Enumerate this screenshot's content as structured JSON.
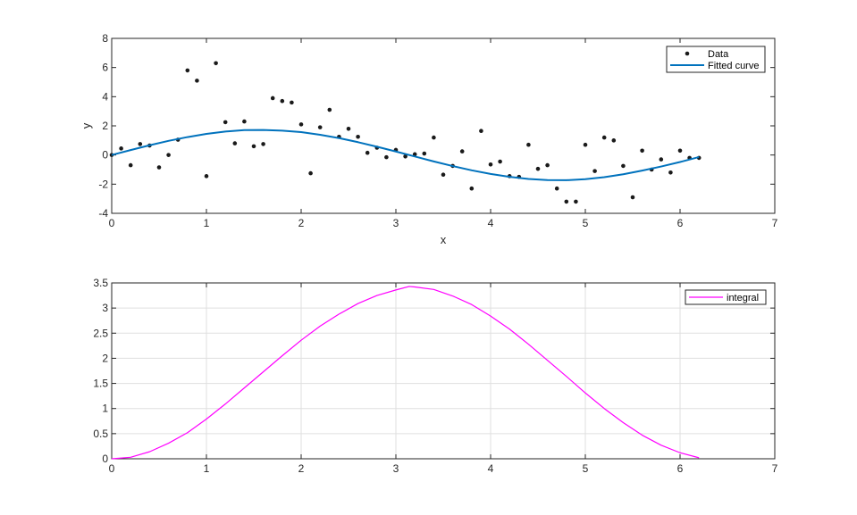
{
  "chart_data": [
    {
      "type": "scatter",
      "xlabel": "x",
      "ylabel": "y",
      "xlim": [
        0,
        7
      ],
      "ylim": [
        -4,
        8
      ],
      "xticks": [
        "0",
        "1",
        "2",
        "3",
        "4",
        "5",
        "6",
        "7"
      ],
      "yticks": [
        "-4",
        "-2",
        "0",
        "2",
        "4",
        "6",
        "8"
      ],
      "grid": false,
      "legend_position": "top-right",
      "series": [
        {
          "name": "Data",
          "style": "markers",
          "color": "#1a1a1a",
          "x": [
            0.0,
            0.1,
            0.2,
            0.3,
            0.4,
            0.5,
            0.6,
            0.7,
            0.8,
            0.9,
            1.0,
            1.1,
            1.2,
            1.3,
            1.4,
            1.5,
            1.6,
            1.7,
            1.8,
            1.9,
            2.0,
            2.1,
            2.2,
            2.3,
            2.4,
            2.5,
            2.6,
            2.7,
            2.8,
            2.9,
            3.0,
            3.1,
            3.2,
            3.3,
            3.4,
            3.5,
            3.6,
            3.7,
            3.8,
            3.9,
            4.0,
            4.1,
            4.2,
            4.3,
            4.4,
            4.5,
            4.6,
            4.7,
            4.8,
            4.9,
            5.0,
            5.1,
            5.2,
            5.3,
            5.4,
            5.5,
            5.6,
            5.7,
            5.8,
            5.9,
            6.0,
            6.1,
            6.2
          ],
          "y": [
            0.0,
            0.45,
            -0.7,
            0.75,
            0.65,
            -0.85,
            0.0,
            1.05,
            5.8,
            5.1,
            -1.45,
            6.3,
            2.25,
            0.8,
            2.3,
            0.6,
            0.75,
            3.9,
            3.7,
            3.6,
            2.1,
            -1.25,
            1.9,
            3.1,
            1.25,
            1.8,
            1.25,
            0.15,
            0.5,
            -0.15,
            0.35,
            -0.1,
            0.05,
            0.1,
            1.2,
            -1.35,
            -0.75,
            0.25,
            -2.3,
            1.65,
            -0.65,
            -0.45,
            -1.45,
            -1.5,
            0.7,
            -0.95,
            -0.7,
            -2.3,
            -3.2,
            -3.2,
            0.7,
            -1.1,
            1.2,
            1.0,
            -0.75,
            -2.9,
            0.3,
            -1.0,
            -0.3,
            -1.2,
            0.3,
            -0.2,
            -0.2
          ]
        },
        {
          "name": "Fitted curve",
          "style": "line",
          "color": "#0072bd",
          "x": [
            0.0,
            0.2,
            0.4,
            0.6,
            0.8,
            1.0,
            1.2,
            1.4,
            1.6,
            1.8,
            2.0,
            2.2,
            2.4,
            2.6,
            2.8,
            3.0,
            3.2,
            3.4,
            3.6,
            3.8,
            4.0,
            4.2,
            4.4,
            4.6,
            4.8,
            5.0,
            5.2,
            5.4,
            5.6,
            5.8,
            6.0,
            6.2
          ],
          "y": [
            0.0,
            0.34,
            0.67,
            0.97,
            1.23,
            1.45,
            1.61,
            1.71,
            1.72,
            1.67,
            1.57,
            1.39,
            1.16,
            0.88,
            0.57,
            0.24,
            -0.1,
            -0.44,
            -0.76,
            -1.05,
            -1.3,
            -1.5,
            -1.64,
            -1.72,
            -1.73,
            -1.66,
            -1.52,
            -1.32,
            -1.07,
            -0.79,
            -0.48,
            -0.14
          ]
        }
      ]
    },
    {
      "type": "line",
      "xlabel": "",
      "ylabel": "",
      "xlim": [
        0,
        7
      ],
      "ylim": [
        0,
        3.5
      ],
      "xticks": [
        "0",
        "1",
        "2",
        "3",
        "4",
        "5",
        "6",
        "7"
      ],
      "yticks": [
        "0",
        "0.5",
        "1",
        "1.5",
        "2",
        "2.5",
        "3",
        "3.5"
      ],
      "grid": true,
      "legend_position": "top-right",
      "series": [
        {
          "name": "integral",
          "style": "line",
          "color": "#ff00ff",
          "x": [
            0.0,
            0.2,
            0.4,
            0.6,
            0.8,
            1.0,
            1.2,
            1.4,
            1.6,
            1.8,
            2.0,
            2.2,
            2.4,
            2.6,
            2.8,
            3.0,
            3.14,
            3.2,
            3.4,
            3.6,
            3.8,
            4.0,
            4.2,
            4.4,
            4.6,
            4.8,
            5.0,
            5.2,
            5.4,
            5.6,
            5.8,
            6.0,
            6.2
          ],
          "y": [
            0.0,
            0.03,
            0.14,
            0.31,
            0.52,
            0.79,
            1.09,
            1.41,
            1.73,
            2.05,
            2.36,
            2.64,
            2.88,
            3.09,
            3.25,
            3.36,
            3.43,
            3.42,
            3.37,
            3.24,
            3.07,
            2.84,
            2.58,
            2.28,
            1.96,
            1.64,
            1.31,
            1.0,
            0.72,
            0.47,
            0.27,
            0.12,
            0.02
          ]
        }
      ]
    }
  ]
}
